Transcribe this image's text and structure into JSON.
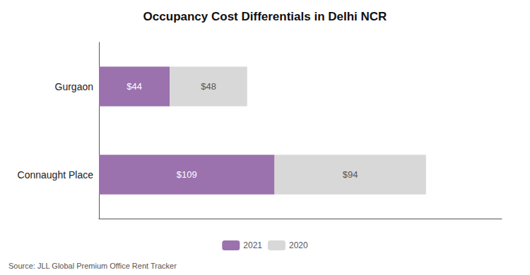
{
  "chart_data": {
    "type": "bar",
    "title": "Occupancy Cost Differentials in Delhi NCR",
    "orientation": "horizontal",
    "stacked": true,
    "categories": [
      "Gurgaon",
      "Connaught Place"
    ],
    "series": [
      {
        "name": "2021",
        "color": "#9b72ae",
        "values": [
          44,
          109
        ],
        "value_labels": [
          "$44",
          "$109"
        ]
      },
      {
        "name": "2020",
        "color": "#d8d8d8",
        "values": [
          48,
          94
        ],
        "value_labels": [
          "$48",
          "$94"
        ]
      }
    ],
    "xlim": [
      0,
      250
    ],
    "data_labels": true,
    "tick_labels": "y",
    "grid": false,
    "legend": "bottom",
    "annotations": [
      "Source: JLL Global Premium Office Rent Tracker"
    ]
  }
}
